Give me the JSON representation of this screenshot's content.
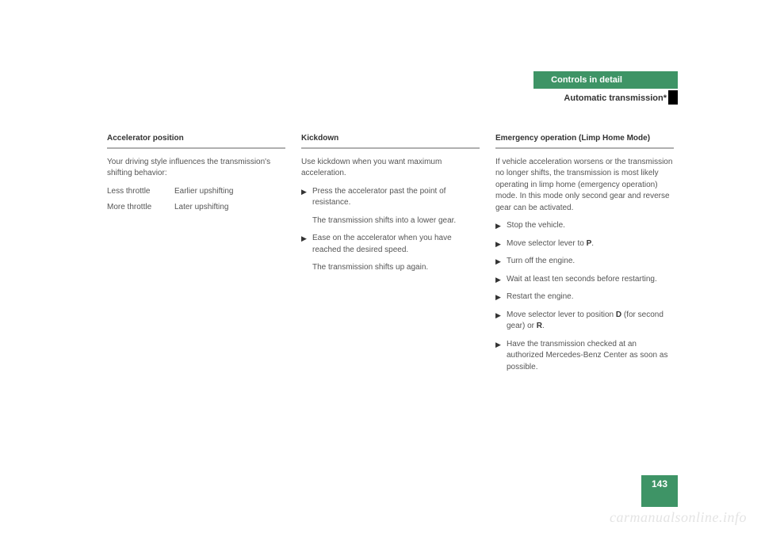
{
  "header": {
    "title": "Controls in detail",
    "subtitle": "Automatic transmission*"
  },
  "col1": {
    "heading": "Accelerator position",
    "intro": "Your driving style influences the transmission's shifting behavior:",
    "rows": [
      {
        "l": "Less throttle",
        "r": "Earlier upshifting"
      },
      {
        "l": "More throttle",
        "r": "Later upshifting"
      }
    ]
  },
  "col2": {
    "heading": "Kickdown",
    "intro": "Use kickdown when you want maximum acceleration.",
    "b1": "Press the accelerator past the point of resistance.",
    "b1_after": "The transmission shifts into a lower gear.",
    "b2": "Ease on the accelerator when you have reached the desired speed.",
    "b2_after": "The transmission shifts up again."
  },
  "col3": {
    "heading": "Emergency operation (Limp Home Mode)",
    "intro": "If vehicle acceleration worsens or the transmission no longer shifts, the transmission is most likely operating in limp home (emergency operation) mode. In this mode only second gear and reverse gear can be activated.",
    "b1": "Stop the vehicle.",
    "b2_pre": "Move selector lever to ",
    "b2_bold": "P",
    "b2_post": ".",
    "b3": "Turn off the engine.",
    "b4": "Wait at least ten seconds before restarting.",
    "b5": "Restart the engine.",
    "b6_pre": "Move selector lever to position ",
    "b6_bold1": "D",
    "b6_mid": " (for second gear) or ",
    "b6_bold2": "R",
    "b6_post": ".",
    "b7": "Have the transmission checked at an authorized Mercedes-Benz Center as soon as possible."
  },
  "pageNumber": "143",
  "watermark": "carmanualsonline.info"
}
